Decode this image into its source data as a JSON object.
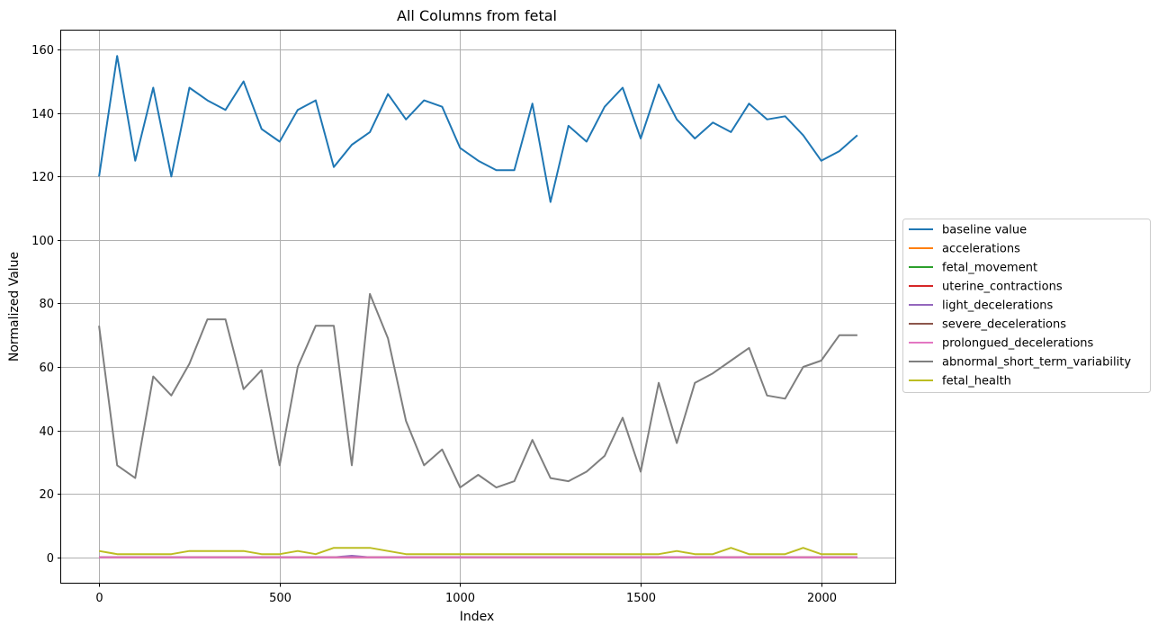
{
  "chart_data": {
    "type": "line",
    "title": "All Columns from fetal",
    "xlabel": "Index",
    "ylabel": "Normalized Value",
    "xlim": [
      -105,
      2205
    ],
    "ylim": [
      -8,
      166
    ],
    "xticks": [
      0,
      500,
      1000,
      1500,
      2000
    ],
    "yticks": [
      0,
      20,
      40,
      60,
      80,
      100,
      120,
      140,
      160
    ],
    "grid": true,
    "legend_position": "center-right-outside",
    "x": [
      0,
      50,
      100,
      150,
      200,
      250,
      300,
      350,
      400,
      450,
      500,
      550,
      600,
      650,
      700,
      750,
      800,
      850,
      900,
      950,
      1000,
      1050,
      1100,
      1150,
      1200,
      1250,
      1300,
      1350,
      1400,
      1450,
      1500,
      1550,
      1600,
      1650,
      1700,
      1750,
      1800,
      1850,
      1900,
      1950,
      2000,
      2050,
      2100
    ],
    "series": [
      {
        "name": "baseline value",
        "color": "#1f77b4",
        "values": [
          120,
          158,
          125,
          148,
          120,
          148,
          144,
          141,
          150,
          135,
          131,
          141,
          144,
          123,
          130,
          134,
          146,
          138,
          144,
          142,
          129,
          125,
          122,
          122,
          143,
          112,
          136,
          131,
          142,
          148,
          132,
          149,
          138,
          132,
          137,
          134,
          143,
          138,
          139,
          133,
          125,
          128,
          133
        ]
      },
      {
        "name": "accelerations",
        "color": "#ff7f0e",
        "values": [
          0,
          0,
          0,
          0,
          0,
          0,
          0,
          0,
          0,
          0,
          0,
          0,
          0,
          0,
          0,
          0,
          0,
          0,
          0,
          0,
          0,
          0,
          0,
          0,
          0,
          0,
          0,
          0,
          0,
          0,
          0,
          0,
          0,
          0,
          0,
          0,
          0,
          0,
          0,
          0,
          0,
          0,
          0
        ]
      },
      {
        "name": "fetal_movement",
        "color": "#2ca02c",
        "values": [
          0,
          0,
          0,
          0,
          0,
          0,
          0,
          0,
          0,
          0,
          0,
          0,
          0,
          0,
          0,
          0,
          0,
          0,
          0,
          0,
          0,
          0,
          0,
          0,
          0,
          0,
          0,
          0,
          0,
          0,
          0,
          0,
          0,
          0,
          0,
          0,
          0,
          0,
          0,
          0,
          0,
          0,
          0
        ]
      },
      {
        "name": "uterine_contractions",
        "color": "#d62728",
        "values": [
          0,
          0,
          0,
          0,
          0,
          0,
          0,
          0,
          0,
          0,
          0,
          0,
          0,
          0,
          0,
          0,
          0,
          0,
          0,
          0,
          0,
          0,
          0,
          0,
          0,
          0,
          0,
          0,
          0,
          0,
          0,
          0,
          0,
          0,
          0,
          0,
          0,
          0,
          0,
          0,
          0,
          0,
          0
        ]
      },
      {
        "name": "light_decelerations",
        "color": "#9467bd",
        "values": [
          0,
          0,
          0,
          0,
          0,
          0,
          0,
          0,
          0,
          0,
          0,
          0,
          0,
          0,
          0.5,
          0,
          0,
          0,
          0,
          0,
          0,
          0,
          0,
          0,
          0,
          0,
          0,
          0,
          0,
          0,
          0,
          0,
          0,
          0,
          0,
          0,
          0,
          0,
          0,
          0,
          0,
          0,
          0
        ]
      },
      {
        "name": "severe_decelerations",
        "color": "#8c564b",
        "values": [
          0,
          0,
          0,
          0,
          0,
          0,
          0,
          0,
          0,
          0,
          0,
          0,
          0,
          0,
          0,
          0,
          0,
          0,
          0,
          0,
          0,
          0,
          0,
          0,
          0,
          0,
          0,
          0,
          0,
          0,
          0,
          0,
          0,
          0,
          0,
          0,
          0,
          0,
          0,
          0,
          0,
          0,
          0
        ]
      },
      {
        "name": "prolongued_decelerations",
        "color": "#e377c2",
        "values": [
          0,
          0,
          0,
          0,
          0,
          0,
          0,
          0,
          0,
          0,
          0,
          0,
          0,
          0,
          0,
          0,
          0,
          0,
          0,
          0,
          0,
          0,
          0,
          0,
          0,
          0,
          0,
          0,
          0,
          0,
          0,
          0,
          0,
          0,
          0,
          0,
          0,
          0,
          0,
          0,
          0,
          0,
          0
        ]
      },
      {
        "name": "abnormal_short_term_variability",
        "color": "#7f7f7f",
        "values": [
          73,
          29,
          25,
          57,
          51,
          61,
          75,
          75,
          53,
          59,
          29,
          60,
          73,
          73,
          29,
          83,
          69,
          43,
          29,
          34,
          22,
          26,
          22,
          24,
          37,
          25,
          24,
          27,
          32,
          44,
          27,
          55,
          36,
          55,
          58,
          62,
          66,
          51,
          50,
          60,
          62,
          70,
          70
        ]
      },
      {
        "name": "fetal_health",
        "color": "#bcbd22",
        "values": [
          2,
          1,
          1,
          1,
          1,
          2,
          2,
          2,
          2,
          1,
          1,
          2,
          1,
          3,
          3,
          3,
          2,
          1,
          1,
          1,
          1,
          1,
          1,
          1,
          1,
          1,
          1,
          1,
          1,
          1,
          1,
          1,
          2,
          1,
          1,
          3,
          1,
          1,
          1,
          3,
          1,
          1,
          1
        ]
      }
    ]
  }
}
